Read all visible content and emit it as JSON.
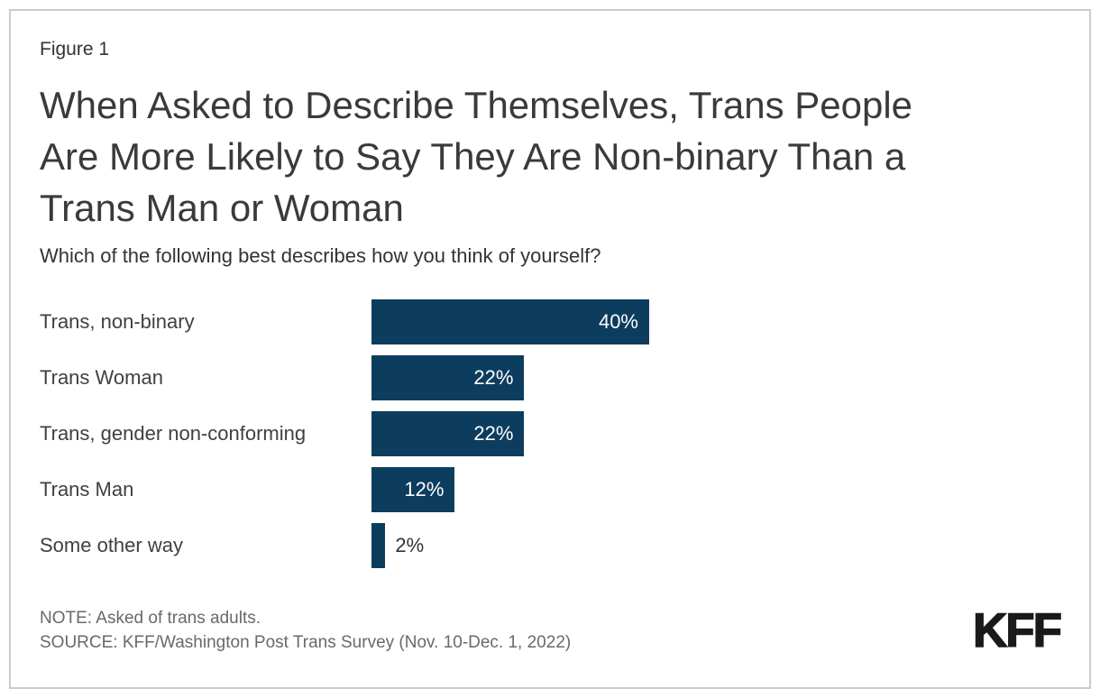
{
  "figure_label": "Figure 1",
  "title_lines": [
    "When Asked to Describe Themselves, Trans People",
    "Are More Likely to Say They Are Non-binary Than a",
    "Trans Man or Woman"
  ],
  "note": "NOTE: Asked of trans adults.",
  "source": "SOURCE: KFF/Washington Post Trans Survey (Nov. 10-Dec. 1, 2022)",
  "logo_text": "KFF",
  "colors": {
    "bar": "#0C3D5E",
    "value_label_inside": "#FFFFFF",
    "value_label_outside": "#333333",
    "title_text": "#3A3A3A",
    "footnote_text": "#696969",
    "card_border": "#CCCCCC"
  },
  "chart_data": {
    "type": "bar",
    "orientation": "horizontal",
    "title": "When Asked to Describe Themselves, Trans People Are More Likely to Say They Are Non-binary Than a Trans Man or Woman",
    "subtitle": "Which of the following best describes how you think of yourself?",
    "categories": [
      "Trans, non-binary",
      "Trans Woman",
      "Trans, gender non-conforming",
      "Trans Man",
      "Some other way"
    ],
    "values": [
      40,
      22,
      22,
      12,
      2
    ],
    "data_labels": [
      "40%",
      "22%",
      "22%",
      "12%",
      "2%"
    ],
    "unit": "%",
    "xlim": [
      0,
      40
    ],
    "axes": "none",
    "gridlines": false,
    "legend": "none",
    "bar_color": "#0C3D5E"
  }
}
